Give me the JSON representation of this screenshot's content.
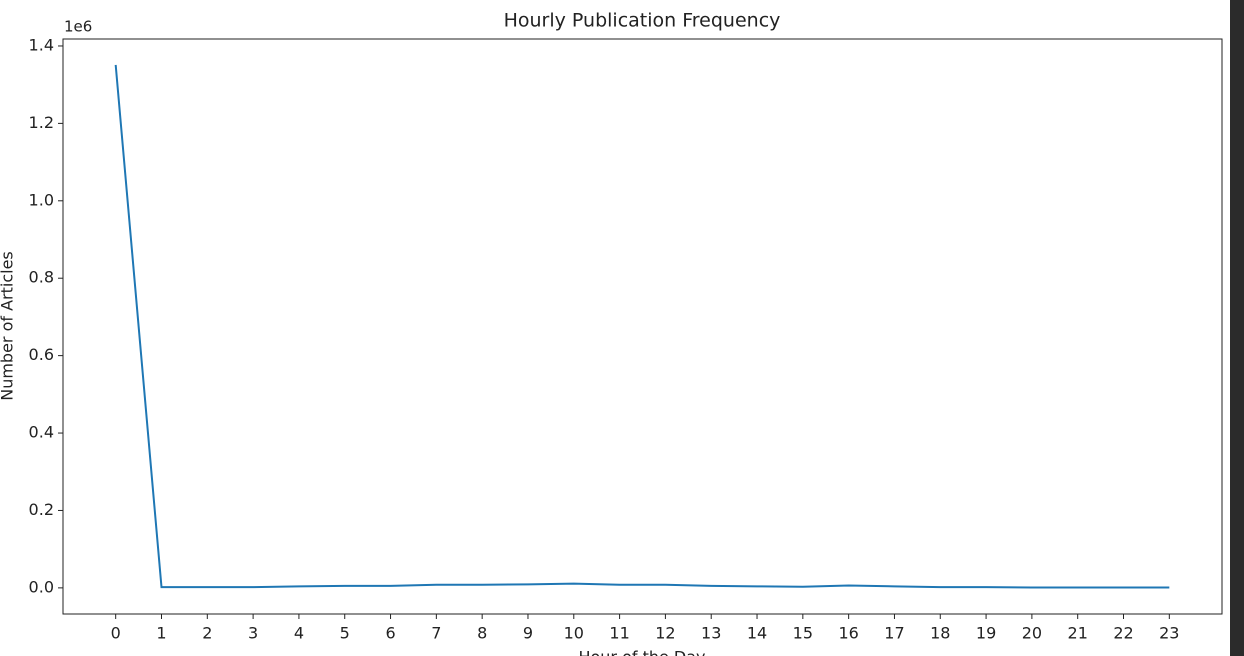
{
  "chart_data": {
    "type": "line",
    "title": "Hourly Publication Frequency",
    "x_label": "Hour of the Day",
    "y_label": "Number of Articles",
    "y_offset_label": "1e6",
    "x": [
      0,
      1,
      2,
      3,
      4,
      5,
      6,
      7,
      8,
      9,
      10,
      11,
      12,
      13,
      14,
      15,
      16,
      17,
      18,
      19,
      20,
      21,
      22,
      23
    ],
    "values": [
      1.351,
      0.002,
      0.002,
      0.002,
      0.004,
      0.005,
      0.005,
      0.008,
      0.008,
      0.009,
      0.011,
      0.008,
      0.008,
      0.005,
      0.004,
      0.003,
      0.006,
      0.004,
      0.002,
      0.002,
      0.001,
      0.001,
      0.001,
      0.001
    ],
    "color": "#1f77b4",
    "xlim": [
      -1.15,
      24.15
    ],
    "ylim": [
      -0.0675,
      1.418
    ],
    "xticks": [
      0,
      1,
      2,
      3,
      4,
      5,
      6,
      7,
      8,
      9,
      10,
      11,
      12,
      13,
      14,
      15,
      16,
      17,
      18,
      19,
      20,
      21,
      22,
      23
    ],
    "yticks": [
      {
        "value": 0,
        "label": "0.0"
      },
      0.2,
      0.4,
      0.6,
      0.8,
      {
        "value": 1,
        "label": "1.0"
      },
      1.2,
      1.4
    ],
    "grid": false
  }
}
